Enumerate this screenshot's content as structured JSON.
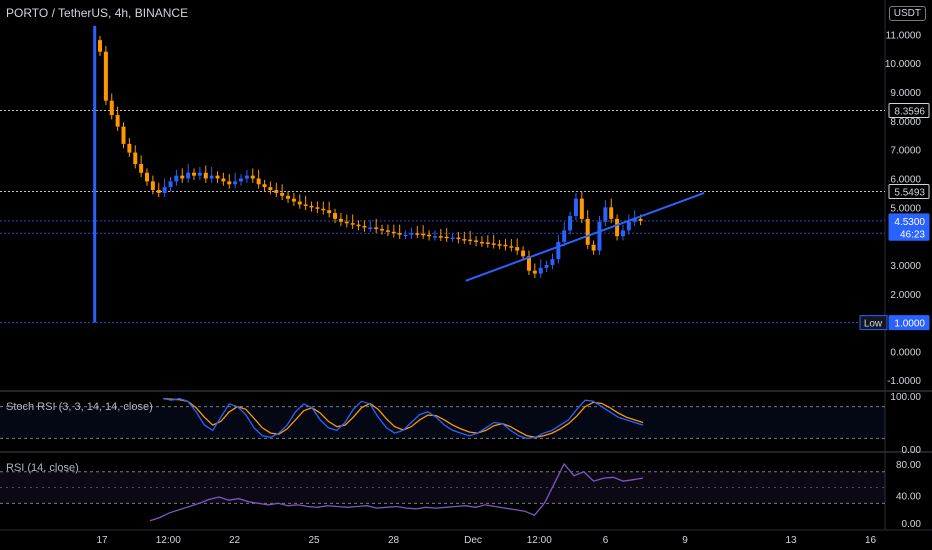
{
  "header": {
    "symbol_title": "PORTO / TetherUS, 4h, BINANCE",
    "currency": "USDT"
  },
  "panes": {
    "stoch_label": "Stoch RSI (3, 3, 14, 14, close)",
    "rsi_label": "RSI (14, close)"
  },
  "price_axis": {
    "ticks": [
      "11.0000",
      "10.0000",
      "9.0000",
      "8.0000",
      "7.0000",
      "6.0000",
      "5.0000",
      "3.0000",
      "2.0000",
      "0.0000",
      "-1.0000"
    ],
    "tick_values": [
      11,
      10,
      9,
      8,
      7,
      6,
      5,
      3,
      2,
      0,
      -1
    ],
    "labels": [
      {
        "text": "8.3596",
        "value": 8.3596,
        "style": "outline"
      },
      {
        "text": "5.5493",
        "value": 5.5493,
        "style": "outline"
      },
      {
        "text": "4.5300",
        "value": 4.53,
        "style": "blue"
      },
      {
        "text": "46:23",
        "value": 4.1,
        "style": "blue"
      },
      {
        "text": "Low",
        "value": 1.0,
        "style": "low-tag"
      },
      {
        "text": "1.0000",
        "value": 1.0,
        "style": "low"
      }
    ]
  },
  "stoch_axis": {
    "ticks": [
      "100.00",
      "0.00"
    ],
    "tick_values": [
      100,
      0
    ]
  },
  "rsi_axis": {
    "ticks": [
      "80.00",
      "40.00",
      "0.00"
    ],
    "tick_values": [
      80,
      40,
      0
    ]
  },
  "time_axis": {
    "ticks": [
      "17",
      "12:00",
      "22",
      "25",
      "28",
      "Dec",
      "12:00",
      "6",
      "9",
      "13",
      "16"
    ],
    "positions": [
      0.0,
      2.5,
      5,
      8,
      11,
      14,
      16.5,
      19,
      22,
      26,
      29
    ]
  },
  "colors": {
    "up": "#2962ff",
    "down": "#ff9800",
    "trendline": "#2962ff",
    "stoch_k": "#2962ff",
    "stoch_d": "#ff9800",
    "rsi": "#7e57c2"
  },
  "chart_data": {
    "type": "candlestick",
    "price_ylim": [
      -1.2,
      11.5
    ],
    "horizontal_lines": [
      8.3596,
      5.5493,
      4.53,
      4.1,
      1.0
    ],
    "spike": {
      "x": -0.2,
      "high": 11.3,
      "low": 1.0
    },
    "trendline": {
      "from": [
        13.8,
        2.45
      ],
      "to": [
        22.8,
        5.5
      ]
    },
    "close": [
      10.4,
      8.7,
      8.2,
      7.8,
      7.2,
      6.9,
      6.5,
      6.2,
      5.9,
      5.6,
      5.5,
      5.7,
      5.9,
      6.1,
      6.0,
      6.2,
      6.1,
      6.2,
      6.0,
      6.1,
      6.0,
      5.9,
      5.8,
      5.9,
      6.0,
      6.1,
      6.0,
      5.8,
      5.7,
      5.6,
      5.5,
      5.4,
      5.3,
      5.2,
      5.1,
      5.05,
      5.0,
      4.95,
      4.9,
      4.8,
      4.6,
      4.5,
      4.45,
      4.4,
      4.35,
      4.3,
      4.3,
      4.25,
      4.2,
      4.15,
      4.1,
      4.05,
      4.05,
      4.1,
      4.08,
      4.05,
      4.0,
      4.0,
      3.98,
      3.95,
      3.95,
      3.9,
      3.88,
      3.85,
      3.8,
      3.78,
      3.75,
      3.72,
      3.7,
      3.65,
      3.62,
      3.5,
      3.3,
      2.8,
      2.7,
      2.9,
      3.0,
      3.2,
      3.8,
      4.2,
      4.7,
      5.3,
      4.6,
      3.7,
      3.5,
      4.5,
      5.0,
      4.6,
      4.0,
      4.2,
      4.5,
      4.6,
      4.53
    ],
    "stoch_k": [
      95,
      92,
      95,
      90,
      70,
      45,
      35,
      60,
      85,
      80,
      65,
      40,
      25,
      22,
      30,
      45,
      70,
      85,
      78,
      55,
      40,
      35,
      50,
      75,
      90,
      85,
      60,
      40,
      30,
      35,
      50,
      65,
      70,
      60,
      45,
      35,
      30,
      25,
      30,
      40,
      50,
      48,
      35,
      25,
      20,
      22,
      30,
      35,
      45,
      55,
      75,
      92,
      90,
      80,
      70,
      60,
      55,
      50,
      45
    ],
    "stoch_d": [
      95,
      94,
      93,
      90,
      78,
      60,
      45,
      52,
      70,
      80,
      75,
      58,
      40,
      30,
      28,
      38,
      55,
      72,
      78,
      68,
      52,
      42,
      45,
      60,
      78,
      86,
      75,
      57,
      42,
      36,
      42,
      55,
      64,
      63,
      55,
      45,
      38,
      32,
      30,
      35,
      44,
      48,
      42,
      33,
      25,
      22,
      25,
      30,
      38,
      48,
      62,
      80,
      88,
      86,
      78,
      68,
      60,
      55,
      50
    ],
    "rsi": [
      8,
      12,
      18,
      22,
      26,
      30,
      35,
      38,
      34,
      36,
      32,
      30,
      28,
      30,
      27,
      28,
      26,
      25,
      27,
      26,
      25,
      26,
      27,
      24,
      25,
      26,
      24,
      23,
      25,
      24,
      25,
      26,
      27,
      25,
      28,
      26,
      24,
      22,
      20,
      15,
      30,
      55,
      80,
      65,
      70,
      58,
      62,
      63,
      58,
      60,
      62
    ]
  }
}
